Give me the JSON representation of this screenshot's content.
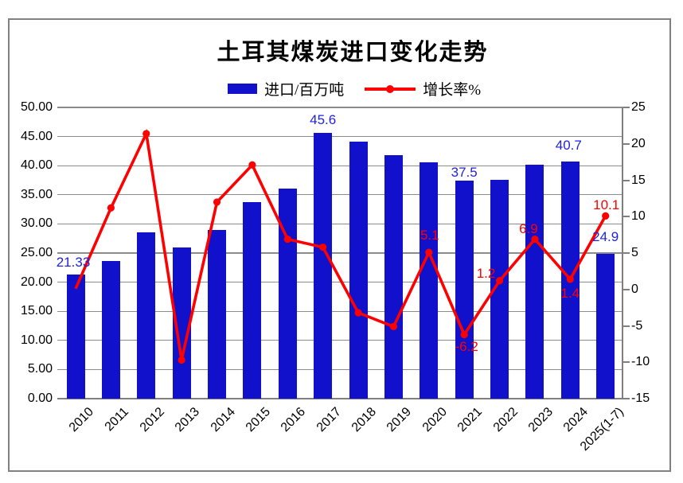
{
  "window": {
    "background": "#FFFFFF",
    "frame_color": "#808080"
  },
  "chart_data": {
    "type": "combo-bar-line",
    "title": "土耳其煤炭进口变化走势",
    "legend_position": "top",
    "grid": true,
    "categories": [
      "2010",
      "2011",
      "2012",
      "2013",
      "2014",
      "2015",
      "2016",
      "2017",
      "2018",
      "2019",
      "2020",
      "2021",
      "2022",
      "2023",
      "2024",
      "2025(1-7)"
    ],
    "series": [
      {
        "name": "进口/百万吨",
        "type": "bar",
        "axis": "left",
        "color": "#1111CB",
        "values": [
          21.33,
          23.7,
          28.6,
          25.9,
          29.0,
          33.8,
          36.1,
          45.6,
          44.1,
          41.8,
          40.6,
          37.5,
          37.6,
          40.1,
          40.7,
          24.9
        ]
      },
      {
        "name": "增长率%",
        "type": "line",
        "axis": "right",
        "color": "#FF0000",
        "values": [
          0.1,
          11.2,
          21.4,
          -9.7,
          12.0,
          17.1,
          6.9,
          5.8,
          -3.2,
          -5.1,
          5.1,
          -6.2,
          1.2,
          6.9,
          1.4,
          10.1
        ]
      }
    ],
    "left_axis": {
      "min": 0,
      "max": 50,
      "ticks": [
        "50.00",
        "45.00",
        "40.00",
        "35.00",
        "30.00",
        "25.00",
        "20.00",
        "15.00",
        "10.00",
        "5.00",
        "0.00"
      ]
    },
    "right_axis": {
      "min": -15,
      "max": 25,
      "ticks": [
        "25",
        "20",
        "15",
        "10",
        "5",
        "0",
        "-5",
        "-10",
        "-15"
      ]
    },
    "visible_bar_labels": [
      {
        "index": 0,
        "text": "21.33"
      },
      {
        "index": 7,
        "text": "45.6"
      },
      {
        "index": 11,
        "text": "37.5"
      },
      {
        "index": 14,
        "text": "40.7"
      },
      {
        "index": 15,
        "text": "24.9"
      }
    ],
    "visible_line_labels": [
      {
        "index": 10,
        "text": "5.1"
      },
      {
        "index": 11,
        "text": "-6.2"
      },
      {
        "index": 12,
        "text": "1.2"
      },
      {
        "index": 13,
        "text": "6.9"
      },
      {
        "index": 14,
        "text": "1.4"
      },
      {
        "index": 15,
        "text": "10.1"
      }
    ],
    "label_colors": {
      "bar_labels": "#2222DE",
      "line_labels": "#FF0000"
    }
  }
}
